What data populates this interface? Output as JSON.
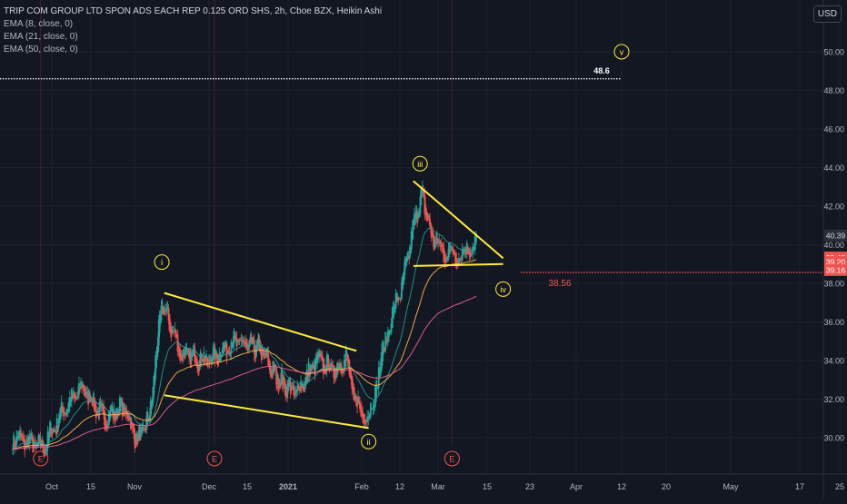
{
  "legend": {
    "title": "TRIP COM GROUP LTD SPON ADS EACH REP 0.125 ORD SHS, 2h, Cboe BZX, Heikin Ashi",
    "indicators": [
      "EMA (8, close, 0)",
      "EMA (21, close, 0)",
      "EMA (50, close, 0)"
    ]
  },
  "currency": "USD",
  "colors": {
    "background": "#131722",
    "grid": "#1e222d",
    "up": "#26a69a",
    "down": "#ef5350",
    "ema8": "#26a69a",
    "ema21": "#ffb74d",
    "ema50": "#f06292",
    "trendline": "#ffeb3b",
    "target_line": "#ffffff",
    "support_line": "#ef5350",
    "wave_label": "#ffeb3b",
    "event_marker": "#ef5350",
    "axis_text": "#b2b5be"
  },
  "chart_data": {
    "type": "candlestick",
    "style": "Heikin Ashi",
    "interval": "2h",
    "exchange": "Cboe BZX",
    "ylim": [
      28.7,
      51.3
    ],
    "y_ticks": [
      "30.00",
      "32.00",
      "34.00",
      "36.00",
      "38.00",
      "40.00",
      "42.00",
      "44.00",
      "46.00",
      "48.00",
      "50.00"
    ],
    "x_ticks": [
      "Oct",
      "15",
      "Nov",
      "Dec",
      "15",
      "2021",
      "Feb",
      "12",
      "Mar",
      "15",
      "23",
      "Apr",
      "12",
      "20",
      "May",
      "17",
      "25"
    ],
    "x_ticks_bold": [
      "2021"
    ],
    "price_path": [
      {
        "date": "Sep 17",
        "price": 30.0
      },
      {
        "date": "Sep 28",
        "price": 29.5
      },
      {
        "date": "Oct 5",
        "price": 31.4
      },
      {
        "date": "Oct 12",
        "price": 32.6
      },
      {
        "date": "Oct 20",
        "price": 31.0
      },
      {
        "date": "Oct 28",
        "price": 31.6
      },
      {
        "date": "Nov 2",
        "price": 29.8
      },
      {
        "date": "Nov 7",
        "price": 31.0
      },
      {
        "date": "Nov 12",
        "price": 37.0
      },
      {
        "date": "Nov 20",
        "price": 34.3
      },
      {
        "date": "Dec 1",
        "price": 34.0
      },
      {
        "date": "Dec 10",
        "price": 35.0
      },
      {
        "date": "Dec 22",
        "price": 34.5
      },
      {
        "date": "Dec 29",
        "price": 33.2
      },
      {
        "date": "Jan 7",
        "price": 32.3
      },
      {
        "date": "Jan 15",
        "price": 34.0
      },
      {
        "date": "Jan 22",
        "price": 33.5
      },
      {
        "date": "Jan 26",
        "price": 34.2
      },
      {
        "date": "Jan 29",
        "price": 32.0
      },
      {
        "date": "Feb 3",
        "price": 31.0
      },
      {
        "date": "Feb 9",
        "price": 36.0
      },
      {
        "date": "Feb 15",
        "price": 39.0
      },
      {
        "date": "Feb 19",
        "price": 41.5
      },
      {
        "date": "Feb 22",
        "price": 42.6
      },
      {
        "date": "Feb 26",
        "price": 40.5
      },
      {
        "date": "Mar 3",
        "price": 39.6
      },
      {
        "date": "Mar 8",
        "price": 39.5
      },
      {
        "date": "Mar 12",
        "price": 40.3
      }
    ],
    "price_labels": [
      {
        "label": "40.39",
        "value": 40.39,
        "bg": "#2a2e39",
        "fg": "#d1d4dc"
      },
      {
        "label": "39.43",
        "value": 39.43,
        "bg": "#ef5350",
        "fg": "#ffffff"
      },
      {
        "label": "39.20",
        "value": 39.2,
        "bg": "#ef5350",
        "fg": "#ffffff"
      },
      {
        "label": "39.16",
        "value": 39.16,
        "bg": "#ef5350",
        "fg": "#ffffff"
      }
    ],
    "annotations": {
      "target_level": {
        "label": "48.6",
        "value": 48.6,
        "from": "Sep 17",
        "to": "Apr 12"
      },
      "support_level": {
        "label": "38.56",
        "value": 38.56,
        "from": "Mar 22",
        "to": "May 25"
      },
      "waves": [
        {
          "label": "i",
          "date": "Nov 12",
          "price": 39.1
        },
        {
          "label": "ii",
          "date": "Feb 3",
          "price": 29.8
        },
        {
          "label": "iii",
          "date": "Feb 21",
          "price": 44.2
        },
        {
          "label": "iv",
          "date": "Mar 18",
          "price": 37.7
        },
        {
          "label": "v",
          "date": "Apr 12",
          "price": 50.0
        }
      ],
      "events": [
        {
          "label": "E",
          "date": "Sep 27"
        },
        {
          "label": "E",
          "date": "Dec 3"
        },
        {
          "label": "E",
          "date": "Mar 5"
        }
      ],
      "trendlines": [
        {
          "from": {
            "date": "Nov 13",
            "price": 37.5
          },
          "to": {
            "date": "Jan 30",
            "price": 34.5
          }
        },
        {
          "from": {
            "date": "Nov 13",
            "price": 32.2
          },
          "to": {
            "date": "Feb 3",
            "price": 30.5
          }
        },
        {
          "from": {
            "date": "Feb 18",
            "price": 43.3
          },
          "to": {
            "date": "Mar 18",
            "price": 39.3
          }
        },
        {
          "from": {
            "date": "Feb 18",
            "price": 38.9
          },
          "to": {
            "date": "Mar 18",
            "price": 39.0
          }
        }
      ]
    }
  }
}
